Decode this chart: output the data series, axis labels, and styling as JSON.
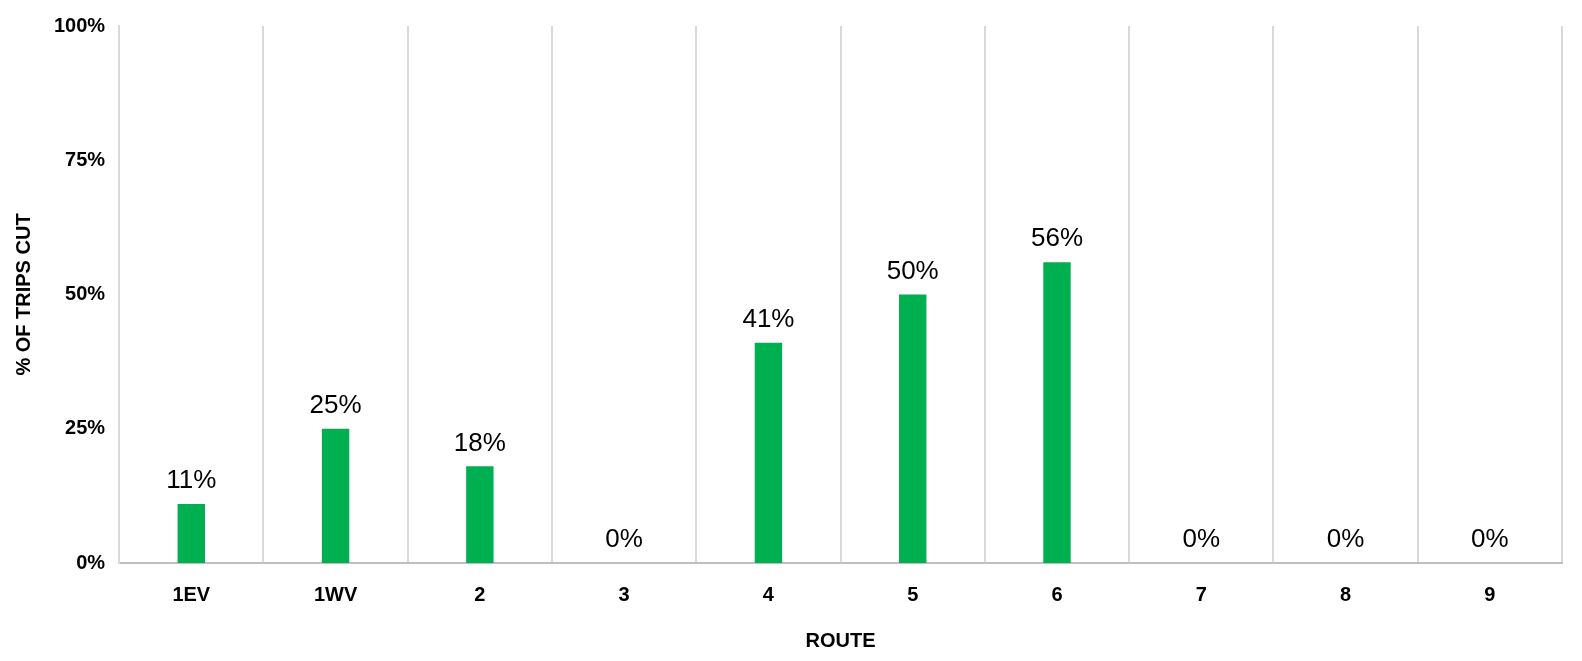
{
  "chart_data": {
    "type": "bar",
    "xlabel": "ROUTE",
    "ylabel": "% OF TRIPS CUT",
    "categories": [
      "1EV",
      "1WV",
      "2",
      "3",
      "4",
      "5",
      "6",
      "7",
      "8",
      "9"
    ],
    "values": [
      11,
      25,
      18,
      0,
      41,
      50,
      56,
      0,
      0,
      0
    ],
    "value_labels": [
      "11%",
      "25%",
      "18%",
      "0%",
      "41%",
      "50%",
      "56%",
      "0%",
      "0%",
      "0%"
    ],
    "color": "#00b050",
    "ylim": [
      0,
      100
    ],
    "yticks": [
      {
        "value": 0,
        "label": "0%"
      },
      {
        "value": 25,
        "label": "25%"
      },
      {
        "value": 50,
        "label": "50%"
      },
      {
        "value": 75,
        "label": "75%"
      },
      {
        "value": 100,
        "label": "100%"
      }
    ],
    "grid": "x",
    "legend": false
  }
}
